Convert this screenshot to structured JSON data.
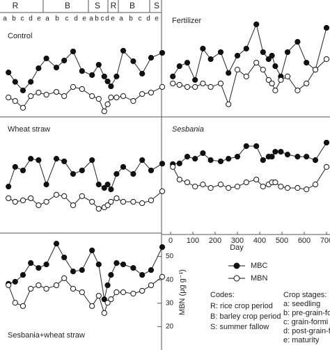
{
  "chart_data": [
    {
      "type": "line",
      "title": "Control",
      "x": [
        10,
        40,
        75,
        110,
        145,
        180,
        225,
        260,
        300,
        340,
        385,
        415,
        440,
        455,
        470,
        495,
        525,
        570,
        610,
        650,
        700
      ],
      "xlim": [
        0,
        700
      ],
      "ylim": [
        10,
        60
      ],
      "series": [
        {
          "name": "MBC",
          "color": "#111111",
          "values": [
            29,
            25,
            21.3,
            25,
            30.8,
            35,
            31.1,
            34.1,
            38,
            29.6,
            27.9,
            32.3,
            27.3,
            25.2,
            23.1,
            27.3,
            38.3,
            33.8,
            28.5,
            35.3,
            37.4
          ]
        },
        {
          "name": "MBN",
          "color": "#ffffff",
          "values": [
            18.3,
            16.8,
            13.9,
            18.9,
            20.4,
            19.5,
            20.7,
            18.9,
            22.8,
            21.9,
            18.9,
            17.7,
            12.4,
            15.4,
            18.3,
            18.3,
            18.9,
            16.8,
            19.8,
            20.4,
            22.8
          ]
        }
      ]
    },
    {
      "type": "line",
      "title": "Fertilizer",
      "x": [
        10,
        40,
        75,
        110,
        145,
        180,
        225,
        260,
        300,
        340,
        385,
        415,
        440,
        455,
        470,
        495,
        525,
        570,
        610,
        650,
        700
      ],
      "xlim": [
        0,
        700
      ],
      "ylim": [
        10,
        60
      ],
      "series": [
        {
          "name": "MBC",
          "color": "#111111",
          "values": [
            27.3,
            31.7,
            33.2,
            25.8,
            39.2,
            34.7,
            37.7,
            28.8,
            36.2,
            39.2,
            49.6,
            37.7,
            34.7,
            36.2,
            31.7,
            27.3,
            37.7,
            42.1,
            33.2,
            30.2,
            48.1
          ]
        },
        {
          "name": "MBN",
          "color": "#ffffff",
          "values": [
            24.3,
            23.7,
            22.8,
            22.8,
            24.3,
            22.8,
            24.3,
            15.4,
            30.2,
            27.3,
            33.2,
            30.2,
            25.8,
            24.3,
            21.3,
            25.8,
            27.3,
            21.3,
            24.3,
            30.2,
            34.7
          ]
        }
      ]
    },
    {
      "type": "line",
      "title": "Wheat straw",
      "x": [
        10,
        40,
        75,
        110,
        145,
        180,
        225,
        260,
        300,
        340,
        385,
        415,
        440,
        455,
        470,
        495,
        525,
        570,
        610,
        650,
        700
      ],
      "xlim": [
        0,
        700
      ],
      "ylim": [
        10,
        60
      ],
      "series": [
        {
          "name": "MBC",
          "color": "#111111",
          "values": [
            30.2,
            38.6,
            37.1,
            42.1,
            41.5,
            31.1,
            42.1,
            41,
            35.6,
            37.1,
            41.5,
            31.1,
            29.6,
            31.1,
            29,
            35.6,
            38.6,
            35.6,
            41.5,
            37.1,
            40
          ]
        },
        {
          "name": "MBN",
          "color": "#ffffff",
          "values": [
            25.2,
            23.7,
            24.3,
            25.2,
            22.2,
            23.7,
            26.7,
            26.1,
            22.2,
            26.1,
            23.7,
            20.7,
            21.3,
            22.2,
            23.7,
            25.2,
            23.7,
            23.7,
            23.1,
            24.3,
            28.2
          ]
        }
      ]
    },
    {
      "type": "line",
      "title": "Sesbania",
      "xlabel": "Day",
      "x": [
        10,
        40,
        75,
        110,
        145,
        180,
        225,
        260,
        300,
        340,
        385,
        415,
        440,
        455,
        470,
        495,
        525,
        570,
        610,
        650,
        700
      ],
      "xlim": [
        0,
        700
      ],
      "ylim": [
        10,
        60
      ],
      "xticks": [
        0,
        100,
        200,
        300,
        400,
        500,
        600,
        700
      ],
      "series": [
        {
          "name": "MBC",
          "color": "#111111",
          "values": [
            39.8,
            40.1,
            43,
            42.1,
            44.5,
            41.5,
            41,
            42.1,
            43,
            47.5,
            47.5,
            41.5,
            43,
            43,
            45.1,
            45.1,
            43.9,
            43,
            43,
            41.5,
            49
          ]
        },
        {
          "name": "MBN",
          "color": "#ffffff",
          "values": [
            38.6,
            33.2,
            32,
            30.2,
            31.1,
            29.6,
            31.1,
            29.6,
            30.2,
            32,
            33.2,
            30.2,
            31.1,
            32,
            32,
            30.2,
            29.6,
            29.6,
            29,
            31.1,
            38.6
          ]
        }
      ]
    },
    {
      "type": "line",
      "title": "Sesbania+wheat straw",
      "ylabel": "MBN (μg g⁻¹)",
      "x": [
        10,
        40,
        75,
        110,
        145,
        180,
        225,
        260,
        300,
        340,
        385,
        415,
        440,
        455,
        470,
        495,
        525,
        570,
        610,
        650,
        700
      ],
      "xlim": [
        0,
        700
      ],
      "ylim": [
        10,
        60
      ],
      "yticks": [
        20,
        30,
        40,
        50
      ],
      "series": [
        {
          "name": "MBC",
          "color": "#111111",
          "values": [
            38.3,
            39.2,
            42.1,
            47.2,
            45.1,
            46.6,
            55.5,
            49.6,
            43.6,
            44.2,
            52.6,
            46.6,
            31.7,
            37.7,
            42.1,
            47.2,
            46.6,
            45.1,
            42.1,
            44.2,
            54
          ]
        },
        {
          "name": "MBN",
          "color": "#ffffff",
          "values": [
            37.7,
            30.2,
            28.8,
            36.2,
            37.7,
            36.2,
            37.7,
            40.7,
            36.2,
            34.7,
            28.8,
            33.2,
            25.8,
            30.2,
            31.7,
            34.7,
            34.7,
            34.1,
            35.3,
            37.7,
            41.3
          ]
        }
      ]
    }
  ],
  "crop_bar": {
    "periods": [
      "R",
      "B",
      "S",
      "R",
      "B",
      "S"
    ],
    "stages": [
      "a",
      "b",
      "c",
      "d",
      "e",
      "a",
      "b",
      "c",
      "d",
      "e",
      "a",
      "b",
      "c",
      "d",
      "e",
      "a",
      "b",
      "c",
      "d",
      "e"
    ]
  },
  "notes": {
    "codes_title": "Codes:",
    "codes": [
      "R: rice crop period",
      "B: barley crop period",
      "S: summer fallow"
    ],
    "stages_title": "Crop stages:",
    "stages": [
      "a: seedling",
      "b: pre-grain-for",
      "c: grain-formi",
      "d: post-grain-fo",
      "e: maturity"
    ]
  }
}
